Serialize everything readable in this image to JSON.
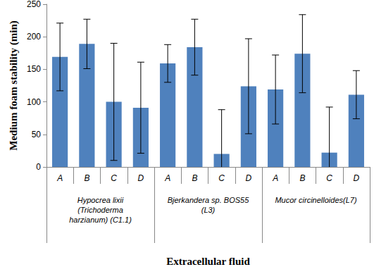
{
  "chart_data": {
    "type": "bar",
    "x_label": "Extracellular fluid",
    "y_label": "Medium foam stability (min)",
    "categories": [
      "A",
      "B",
      "C",
      "D",
      "A",
      "B",
      "C",
      "D",
      "A",
      "B",
      "C",
      "D"
    ],
    "groups": [
      "Hypocrea lixii\n(Trichoderma\nharzianum) (C1.1)",
      "Bjerkandera sp. BOS55\n(L3)",
      "Mucor circinelloides(L7)"
    ],
    "values": [
      169,
      189,
      100,
      91,
      159,
      184,
      20,
      124,
      119,
      174,
      22,
      111
    ],
    "errors": [
      52,
      38,
      90,
      70,
      29,
      43,
      68,
      73,
      53,
      60,
      70,
      37
    ],
    "color": "#4f81bd",
    "ylim": [
      0,
      250
    ],
    "yticks": [
      0,
      50,
      100,
      150,
      200,
      250
    ],
    "grid": false
  }
}
